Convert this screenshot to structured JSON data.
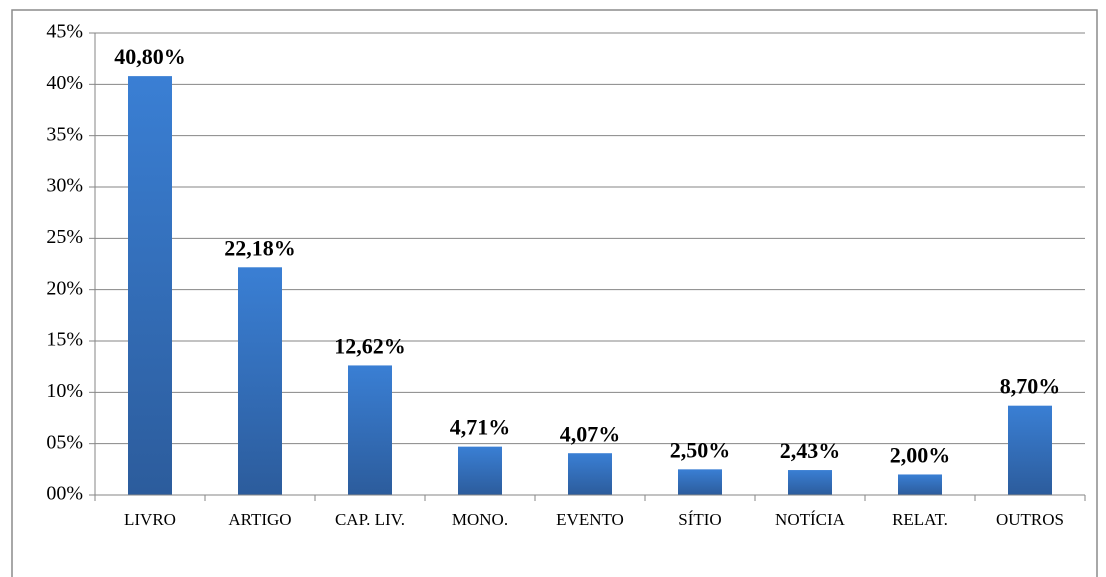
{
  "chart_data": {
    "type": "bar",
    "categories": [
      "LIVRO",
      "ARTIGO",
      "CAP. LIV.",
      "MONO.",
      "EVENTO",
      "SÍTIO",
      "NOTÍCIA",
      "RELAT.",
      "OUTROS"
    ],
    "values": [
      40.8,
      22.18,
      12.62,
      4.71,
      4.07,
      2.5,
      2.43,
      2.0,
      8.7
    ],
    "value_labels": [
      "40,80%",
      "22,18%",
      "12,62%",
      "4,71%",
      "4,07%",
      "2,50%",
      "2,43%",
      "2,00%",
      "8,70%"
    ],
    "color": "#3a7fd4",
    "ylim": [
      0,
      45
    ],
    "yticks": [
      {
        "value": 0,
        "label": "00%"
      },
      {
        "value": 5,
        "label": "05%"
      },
      {
        "value": 10,
        "label": "10%"
      },
      {
        "value": 15,
        "label": "15%"
      },
      {
        "value": 20,
        "label": "20%"
      },
      {
        "value": 25,
        "label": "25%"
      },
      {
        "value": 30,
        "label": "30%"
      },
      {
        "value": 35,
        "label": "35%"
      },
      {
        "value": 40,
        "label": "40%"
      },
      {
        "value": 45,
        "label": "45%"
      }
    ],
    "grid": true
  }
}
